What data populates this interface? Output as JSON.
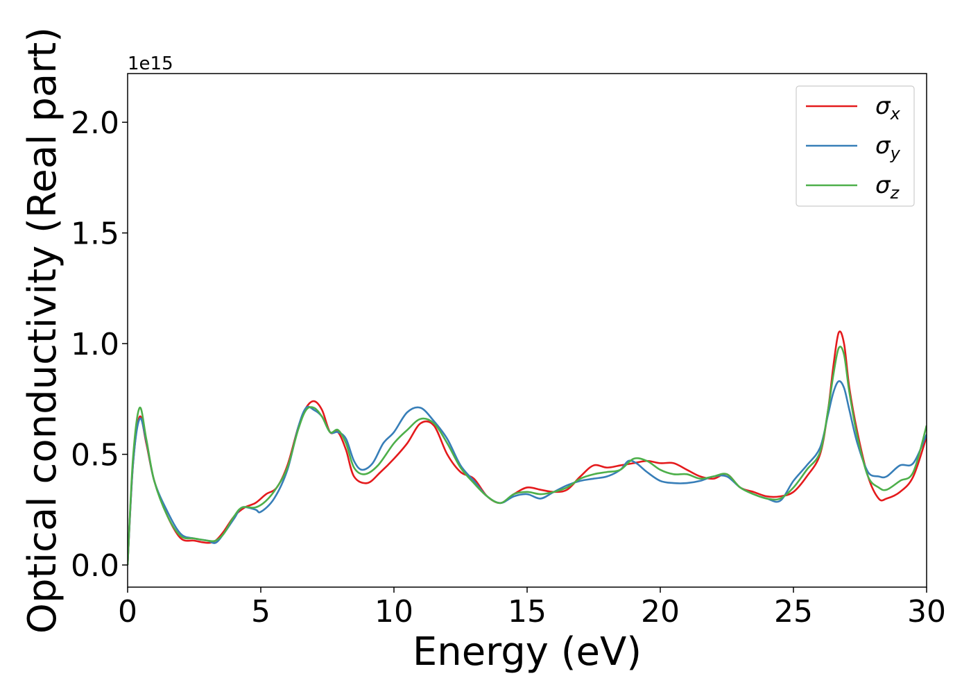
{
  "chart_data": {
    "type": "line",
    "xlabel": "Energy (eV)",
    "ylabel": "Optical conductivity (Real part)",
    "y_offset_label": "1e15",
    "xlim": [
      0,
      30
    ],
    "ylim": [
      -0.1,
      2.22
    ],
    "xticks": [
      {
        "value": 0,
        "label": "0"
      },
      {
        "value": 5,
        "label": "5"
      },
      {
        "value": 10,
        "label": "10"
      },
      {
        "value": 15,
        "label": "15"
      },
      {
        "value": 20,
        "label": "20"
      },
      {
        "value": 25,
        "label": "25"
      },
      {
        "value": 30,
        "label": "30"
      }
    ],
    "yticks": [
      {
        "value": 0.0,
        "label": "0.0"
      },
      {
        "value": 0.5,
        "label": "0.5"
      },
      {
        "value": 1.0,
        "label": "1.0"
      },
      {
        "value": 1.5,
        "label": "1.5"
      },
      {
        "value": 2.0,
        "label": "2.0"
      }
    ],
    "grid": false,
    "legend_position": "top-right",
    "series": [
      {
        "name": "σ",
        "subscript": "x",
        "color": "#e41a1c",
        "points": [
          [
            0,
            0
          ],
          [
            0.2,
            0.45
          ],
          [
            0.45,
            0.67
          ],
          [
            0.7,
            0.55
          ],
          [
            1.0,
            0.38
          ],
          [
            1.5,
            0.22
          ],
          [
            2.0,
            0.12
          ],
          [
            2.5,
            0.11
          ],
          [
            3.0,
            0.1
          ],
          [
            3.3,
            0.11
          ],
          [
            3.6,
            0.15
          ],
          [
            4.0,
            0.22
          ],
          [
            4.4,
            0.26
          ],
          [
            4.8,
            0.28
          ],
          [
            5.2,
            0.32
          ],
          [
            5.6,
            0.35
          ],
          [
            6.0,
            0.45
          ],
          [
            6.4,
            0.62
          ],
          [
            6.7,
            0.71
          ],
          [
            7.0,
            0.74
          ],
          [
            7.3,
            0.7
          ],
          [
            7.6,
            0.6
          ],
          [
            7.9,
            0.6
          ],
          [
            8.2,
            0.52
          ],
          [
            8.5,
            0.4
          ],
          [
            9.0,
            0.37
          ],
          [
            9.5,
            0.42
          ],
          [
            10.0,
            0.48
          ],
          [
            10.5,
            0.55
          ],
          [
            11.0,
            0.64
          ],
          [
            11.5,
            0.63
          ],
          [
            12.0,
            0.5
          ],
          [
            12.5,
            0.42
          ],
          [
            13.0,
            0.39
          ],
          [
            13.5,
            0.31
          ],
          [
            14.0,
            0.28
          ],
          [
            14.5,
            0.32
          ],
          [
            15.0,
            0.35
          ],
          [
            15.5,
            0.34
          ],
          [
            16.0,
            0.33
          ],
          [
            16.5,
            0.34
          ],
          [
            17.0,
            0.4
          ],
          [
            17.5,
            0.45
          ],
          [
            18.0,
            0.44
          ],
          [
            18.5,
            0.45
          ],
          [
            19.0,
            0.46
          ],
          [
            19.5,
            0.47
          ],
          [
            20.0,
            0.46
          ],
          [
            20.5,
            0.46
          ],
          [
            21.0,
            0.43
          ],
          [
            21.5,
            0.4
          ],
          [
            22.0,
            0.39
          ],
          [
            22.5,
            0.41
          ],
          [
            23.0,
            0.35
          ],
          [
            23.5,
            0.33
          ],
          [
            24.0,
            0.31
          ],
          [
            24.5,
            0.31
          ],
          [
            25.0,
            0.33
          ],
          [
            25.5,
            0.4
          ],
          [
            26.0,
            0.5
          ],
          [
            26.3,
            0.7
          ],
          [
            26.5,
            0.9
          ],
          [
            26.7,
            1.05
          ],
          [
            26.9,
            1.0
          ],
          [
            27.1,
            0.8
          ],
          [
            27.4,
            0.6
          ],
          [
            27.8,
            0.4
          ],
          [
            28.2,
            0.3
          ],
          [
            28.5,
            0.3
          ],
          [
            29.0,
            0.33
          ],
          [
            29.5,
            0.4
          ],
          [
            30.0,
            0.58
          ]
        ]
      },
      {
        "name": "σ",
        "subscript": "y",
        "color": "#377eb8",
        "points": [
          [
            0,
            0
          ],
          [
            0.2,
            0.45
          ],
          [
            0.45,
            0.66
          ],
          [
            0.7,
            0.56
          ],
          [
            1.0,
            0.38
          ],
          [
            1.5,
            0.24
          ],
          [
            2.0,
            0.14
          ],
          [
            2.5,
            0.12
          ],
          [
            3.0,
            0.11
          ],
          [
            3.3,
            0.1
          ],
          [
            3.6,
            0.14
          ],
          [
            4.0,
            0.21
          ],
          [
            4.3,
            0.26
          ],
          [
            4.8,
            0.25
          ],
          [
            5.0,
            0.24
          ],
          [
            5.5,
            0.3
          ],
          [
            6.0,
            0.43
          ],
          [
            6.4,
            0.62
          ],
          [
            6.7,
            0.71
          ],
          [
            7.0,
            0.7
          ],
          [
            7.3,
            0.67
          ],
          [
            7.6,
            0.6
          ],
          [
            7.9,
            0.6
          ],
          [
            8.2,
            0.57
          ],
          [
            8.5,
            0.47
          ],
          [
            8.8,
            0.43
          ],
          [
            9.2,
            0.46
          ],
          [
            9.6,
            0.55
          ],
          [
            10.0,
            0.6
          ],
          [
            10.5,
            0.69
          ],
          [
            11.0,
            0.71
          ],
          [
            11.5,
            0.65
          ],
          [
            12.0,
            0.57
          ],
          [
            12.5,
            0.45
          ],
          [
            13.0,
            0.38
          ],
          [
            13.5,
            0.31
          ],
          [
            14.0,
            0.28
          ],
          [
            14.5,
            0.31
          ],
          [
            15.0,
            0.32
          ],
          [
            15.5,
            0.3
          ],
          [
            16.0,
            0.33
          ],
          [
            16.5,
            0.36
          ],
          [
            17.0,
            0.38
          ],
          [
            17.5,
            0.39
          ],
          [
            18.0,
            0.4
          ],
          [
            18.5,
            0.43
          ],
          [
            18.8,
            0.47
          ],
          [
            19.1,
            0.46
          ],
          [
            19.5,
            0.42
          ],
          [
            20.0,
            0.38
          ],
          [
            20.5,
            0.37
          ],
          [
            21.0,
            0.37
          ],
          [
            21.5,
            0.38
          ],
          [
            22.0,
            0.4
          ],
          [
            22.5,
            0.4
          ],
          [
            23.0,
            0.35
          ],
          [
            23.5,
            0.32
          ],
          [
            24.0,
            0.3
          ],
          [
            24.5,
            0.29
          ],
          [
            25.0,
            0.38
          ],
          [
            25.5,
            0.45
          ],
          [
            26.0,
            0.53
          ],
          [
            26.3,
            0.68
          ],
          [
            26.5,
            0.78
          ],
          [
            26.7,
            0.83
          ],
          [
            26.9,
            0.8
          ],
          [
            27.1,
            0.7
          ],
          [
            27.4,
            0.55
          ],
          [
            27.8,
            0.42
          ],
          [
            28.2,
            0.4
          ],
          [
            28.5,
            0.4
          ],
          [
            29.0,
            0.45
          ],
          [
            29.5,
            0.46
          ],
          [
            30.0,
            0.59
          ]
        ]
      },
      {
        "name": "σ",
        "subscript": "z",
        "color": "#4daf4a",
        "points": [
          [
            0,
            0
          ],
          [
            0.2,
            0.48
          ],
          [
            0.45,
            0.71
          ],
          [
            0.7,
            0.57
          ],
          [
            1.0,
            0.38
          ],
          [
            1.5,
            0.22
          ],
          [
            2.0,
            0.13
          ],
          [
            2.5,
            0.12
          ],
          [
            3.0,
            0.11
          ],
          [
            3.3,
            0.11
          ],
          [
            3.6,
            0.14
          ],
          [
            4.0,
            0.22
          ],
          [
            4.3,
            0.26
          ],
          [
            4.8,
            0.26
          ],
          [
            5.2,
            0.29
          ],
          [
            5.6,
            0.35
          ],
          [
            6.0,
            0.44
          ],
          [
            6.4,
            0.61
          ],
          [
            6.7,
            0.7
          ],
          [
            7.0,
            0.71
          ],
          [
            7.3,
            0.67
          ],
          [
            7.6,
            0.6
          ],
          [
            7.9,
            0.61
          ],
          [
            8.2,
            0.55
          ],
          [
            8.5,
            0.44
          ],
          [
            8.9,
            0.41
          ],
          [
            9.4,
            0.45
          ],
          [
            10.0,
            0.55
          ],
          [
            10.5,
            0.61
          ],
          [
            11.0,
            0.66
          ],
          [
            11.5,
            0.64
          ],
          [
            12.0,
            0.55
          ],
          [
            12.5,
            0.44
          ],
          [
            13.0,
            0.37
          ],
          [
            13.5,
            0.31
          ],
          [
            14.0,
            0.28
          ],
          [
            14.5,
            0.32
          ],
          [
            15.0,
            0.33
          ],
          [
            15.5,
            0.32
          ],
          [
            16.0,
            0.33
          ],
          [
            16.5,
            0.35
          ],
          [
            17.0,
            0.39
          ],
          [
            17.5,
            0.41
          ],
          [
            18.0,
            0.42
          ],
          [
            18.5,
            0.43
          ],
          [
            19.0,
            0.48
          ],
          [
            19.5,
            0.47
          ],
          [
            20.0,
            0.43
          ],
          [
            20.5,
            0.41
          ],
          [
            21.0,
            0.41
          ],
          [
            21.5,
            0.39
          ],
          [
            22.0,
            0.4
          ],
          [
            22.5,
            0.41
          ],
          [
            23.0,
            0.35
          ],
          [
            23.5,
            0.32
          ],
          [
            24.0,
            0.3
          ],
          [
            24.5,
            0.3
          ],
          [
            25.0,
            0.35
          ],
          [
            25.5,
            0.43
          ],
          [
            26.0,
            0.51
          ],
          [
            26.3,
            0.7
          ],
          [
            26.5,
            0.86
          ],
          [
            26.7,
            0.98
          ],
          [
            26.9,
            0.95
          ],
          [
            27.1,
            0.78
          ],
          [
            27.4,
            0.58
          ],
          [
            27.8,
            0.4
          ],
          [
            28.2,
            0.35
          ],
          [
            28.5,
            0.34
          ],
          [
            29.0,
            0.38
          ],
          [
            29.5,
            0.42
          ],
          [
            30.0,
            0.63
          ]
        ]
      }
    ]
  }
}
